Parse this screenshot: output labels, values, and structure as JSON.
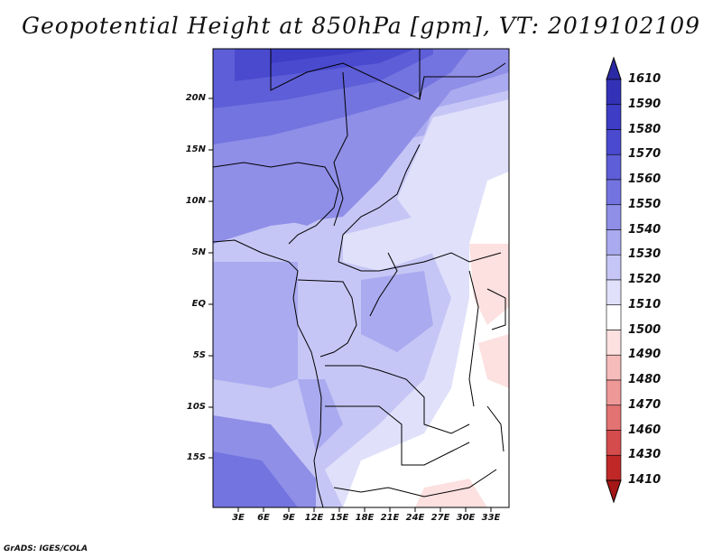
{
  "title": "Geopotential Height at 850hPa [gpm], VT: 2019102109",
  "credit": "GrADS: IGES/COLA",
  "chart_data": {
    "type": "heatmap",
    "variable": "Geopotential Height at 850hPa",
    "units": "gpm",
    "valid_time": "2019102109",
    "lon_range": [
      0,
      35
    ],
    "lat_range": [
      -20,
      25
    ],
    "lat_ticks": [
      "20N",
      "15N",
      "10N",
      "5N",
      "EQ",
      "5S",
      "10S",
      "15S"
    ],
    "lon_ticks": [
      "3E",
      "6E",
      "9E",
      "12E",
      "15E",
      "18E",
      "21E",
      "24E",
      "27E",
      "30E",
      "33E"
    ],
    "colorbar": {
      "levels": [
        "1610",
        "1590",
        "1580",
        "1570",
        "1560",
        "1550",
        "1540",
        "1530",
        "1520",
        "1510",
        "1500",
        "1490",
        "1480",
        "1470",
        "1460",
        "1430",
        "1410"
      ],
      "colors": [
        "#2b2aa4",
        "#3332b6",
        "#3d3dc6",
        "#4a4acf",
        "#5e5ed8",
        "#7474e0",
        "#8f8fe8",
        "#aaaaf0",
        "#c6c6f6",
        "#e0e0fb",
        "#ffffff",
        "#fde0e0",
        "#f6bcbc",
        "#ee9898",
        "#e37272",
        "#d44c4c",
        "#c02828",
        "#a51616"
      ]
    }
  },
  "icons": {
    "colorbar_top": "triangle-up-icon",
    "colorbar_bottom": "triangle-down-icon"
  }
}
